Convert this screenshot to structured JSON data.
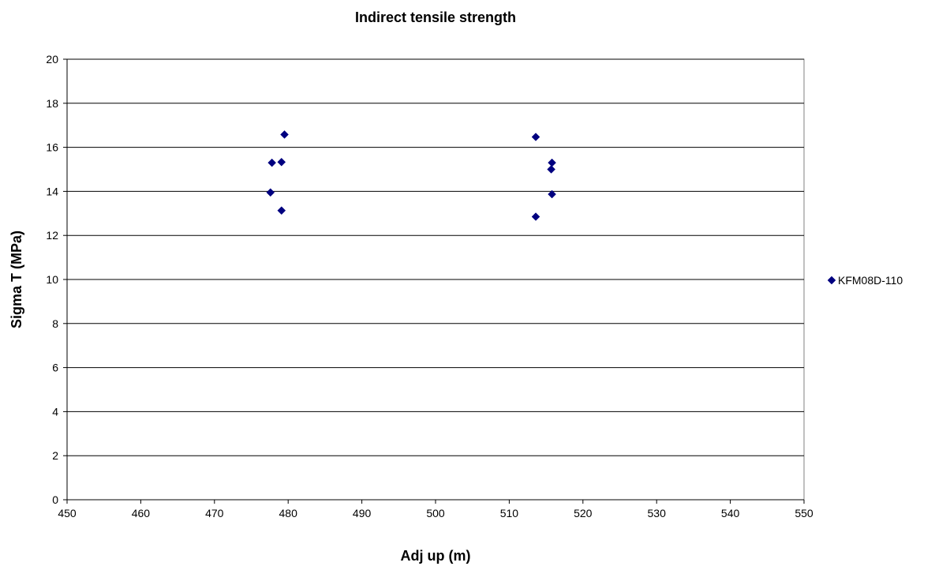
{
  "chart_data": {
    "type": "scatter",
    "title": "Indirect tensile strength",
    "xlabel": "Adj up (m)",
    "ylabel": "Sigma T (MPa)",
    "xlim": [
      450,
      550
    ],
    "ylim": [
      0,
      20
    ],
    "xticks": [
      450,
      460,
      470,
      480,
      490,
      500,
      510,
      520,
      530,
      540,
      550
    ],
    "yticks": [
      0,
      2,
      4,
      6,
      8,
      10,
      12,
      14,
      16,
      18,
      20
    ],
    "grid": "horizontal",
    "legend_position": "right",
    "series": [
      {
        "name": "KFM08D-110",
        "color": "#000080",
        "marker": "diamond",
        "points": [
          {
            "x": 477.6,
            "y": 13.95
          },
          {
            "x": 477.8,
            "y": 15.3
          },
          {
            "x": 479.1,
            "y": 15.33
          },
          {
            "x": 479.1,
            "y": 13.13
          },
          {
            "x": 479.5,
            "y": 16.58
          },
          {
            "x": 513.6,
            "y": 16.47
          },
          {
            "x": 513.6,
            "y": 12.85
          },
          {
            "x": 515.7,
            "y": 15.0
          },
          {
            "x": 515.8,
            "y": 15.3
          },
          {
            "x": 515.8,
            "y": 13.87
          }
        ]
      }
    ]
  }
}
